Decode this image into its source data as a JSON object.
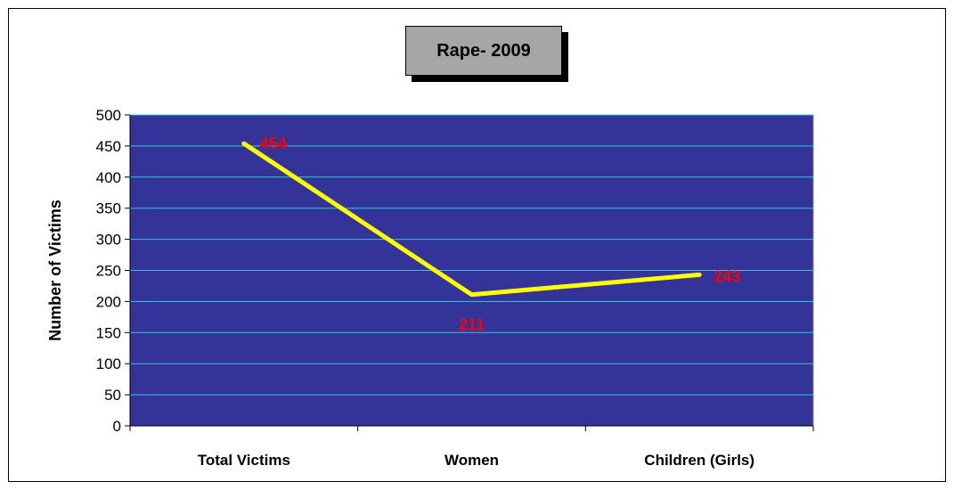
{
  "chart_data": {
    "type": "line",
    "title": "Rape- 2009",
    "categories": [
      "Total Victims",
      "Women",
      "Children (Girls)"
    ],
    "series": [
      {
        "values": [
          454,
          211,
          243
        ]
      }
    ],
    "data_labels": [
      "454",
      "211",
      "243"
    ],
    "ylabel": "Number of Victims",
    "xlabel": "",
    "ylim": [
      0,
      500
    ],
    "yticks": [
      0,
      50,
      100,
      150,
      200,
      250,
      300,
      350,
      400,
      450,
      500
    ],
    "grid": true,
    "legend": "none",
    "colors": {
      "plot_background": "#333399",
      "gridline": "#33cccc",
      "line": "#ffff00",
      "data_label": "#ff0000",
      "title_box": "#a6a6a6"
    }
  }
}
